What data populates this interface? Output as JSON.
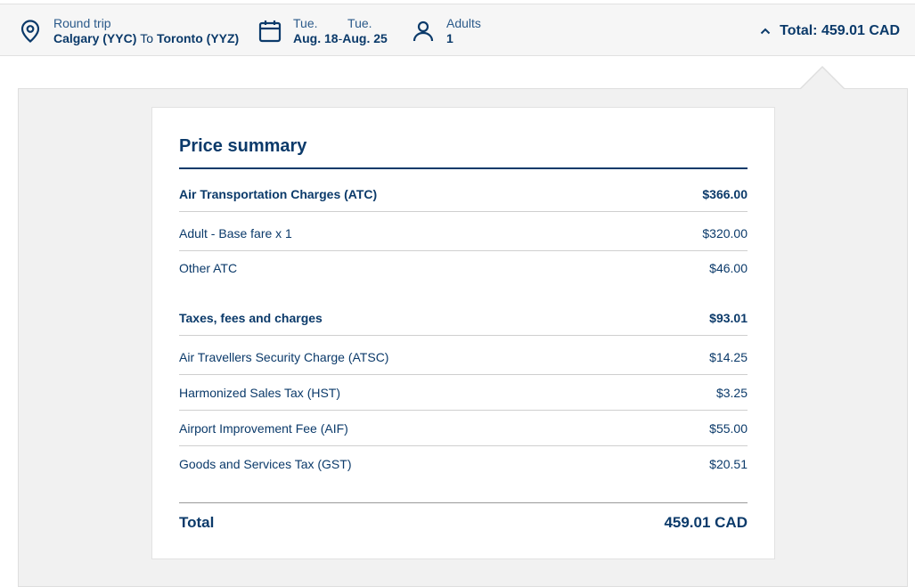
{
  "header": {
    "trip_type": "Round trip",
    "origin": "Calgary (YYC)",
    "to_word": "To",
    "destination": "Toronto (YYZ)",
    "depart_day": "Tue.",
    "depart_date": "Aug. 18",
    "date_separator": "-",
    "return_day": "Tue.",
    "return_date": "Aug. 25",
    "passengers_label": "Adults",
    "passengers_count": "1",
    "total_label": "Total: 459.01 CAD",
    "icons": {
      "location": "location-pin-icon",
      "calendar": "calendar-icon",
      "person": "person-icon",
      "toggle": "chevron-up-icon"
    }
  },
  "summary": {
    "title": "Price summary",
    "atc_label": "Air Transportation Charges (ATC)",
    "atc_value": "$366.00",
    "base_label": "Adult - Base fare x 1",
    "base_value": "$320.00",
    "other_label": "Other ATC",
    "other_value": "$46.00",
    "taxes_label": "Taxes, fees and charges",
    "taxes_value": "$93.01",
    "tax_items": [
      {
        "label": "Air Travellers Security Charge (ATSC)",
        "value": "$14.25"
      },
      {
        "label": "Harmonized Sales Tax (HST)",
        "value": "$3.25"
      },
      {
        "label": "Airport Improvement Fee (AIF)",
        "value": "$55.00"
      },
      {
        "label": "Goods and Services Tax (GST)",
        "value": "$20.51"
      }
    ],
    "total_label": "Total",
    "total_value": "459.01 CAD"
  },
  "colors": {
    "brand": "#0b3a6a",
    "panel": "#f1f1f1",
    "bar": "#f6f6f6"
  }
}
